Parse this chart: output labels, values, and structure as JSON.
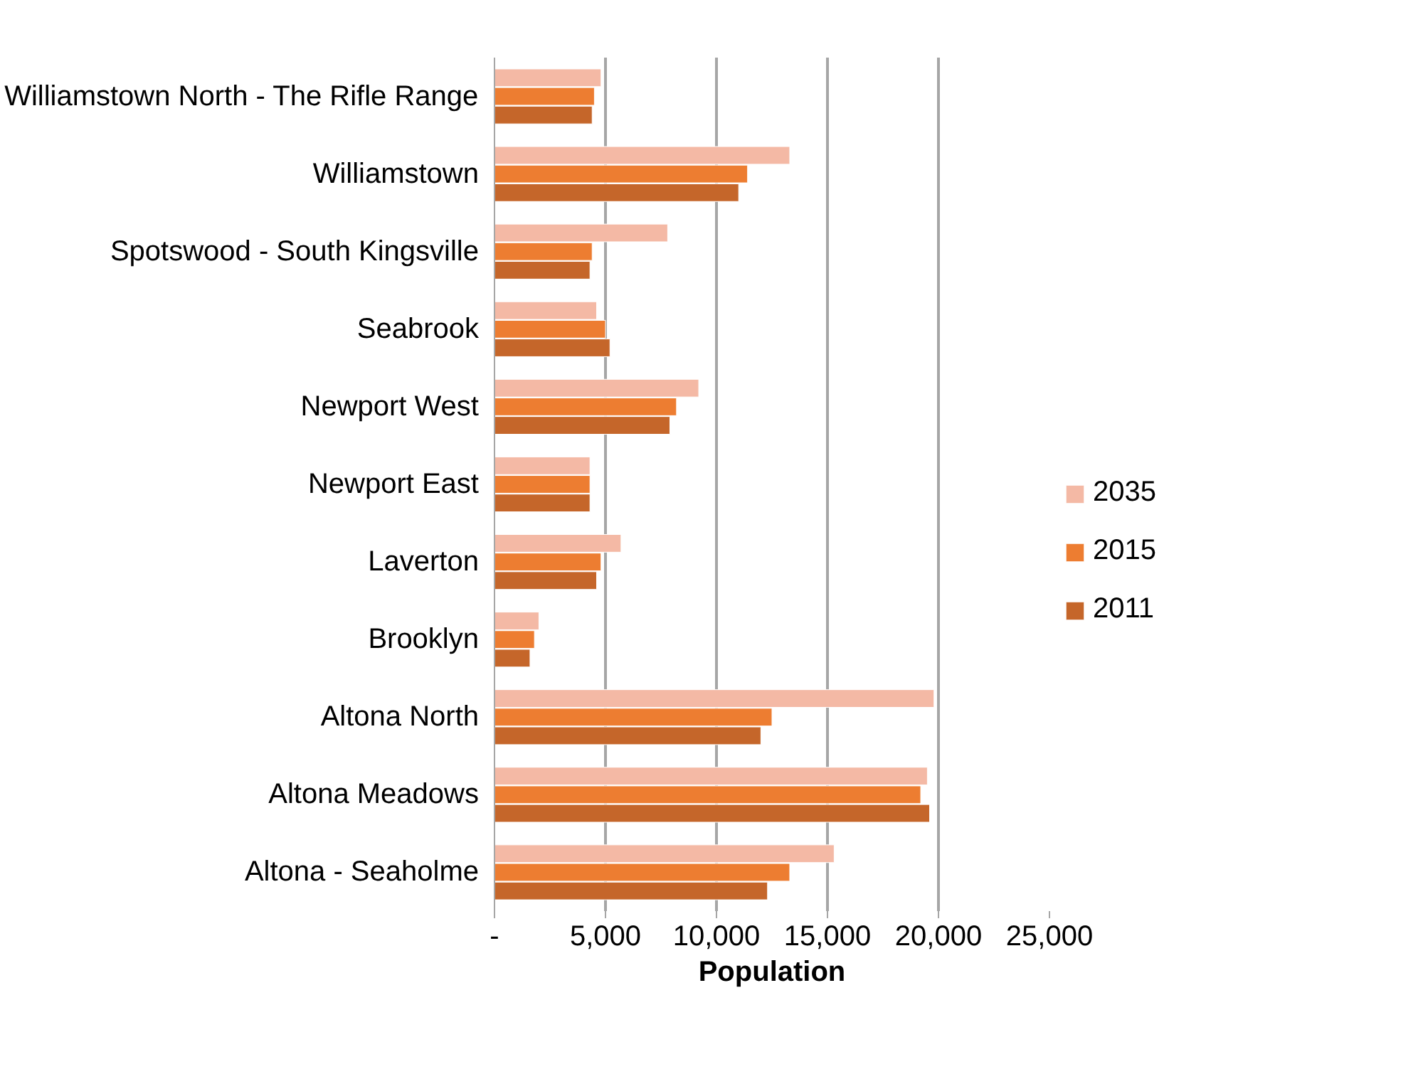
{
  "chart_data": {
    "type": "bar",
    "orientation": "horizontal",
    "xlabel": "Population",
    "categories": [
      "Williamstown North - The Rifle Range",
      "Williamstown",
      "Spotswood - South Kingsville",
      "Seabrook",
      "Newport West",
      "Newport East",
      "Laverton",
      "Brooklyn",
      "Altona North",
      "Altona Meadows",
      "Altona - Seaholme"
    ],
    "series": [
      {
        "name": "2035",
        "color": "#f4b9a5",
        "values": [
          4800,
          13300,
          7800,
          4600,
          9200,
          4300,
          5700,
          2000,
          19800,
          19500,
          15300
        ]
      },
      {
        "name": "2015",
        "color": "#ed7d31",
        "values": [
          4500,
          11400,
          4400,
          5000,
          8200,
          4300,
          4800,
          1800,
          12500,
          19200,
          13300
        ]
      },
      {
        "name": "2011",
        "color": "#c5662a",
        "values": [
          4400,
          11000,
          4300,
          5200,
          7900,
          4300,
          4600,
          1600,
          12000,
          19600,
          12300
        ]
      }
    ],
    "xlim": [
      0,
      25000
    ],
    "xticks": [
      {
        "value": 0,
        "label": "-"
      },
      {
        "value": 5000,
        "label": "5,000"
      },
      {
        "value": 10000,
        "label": "10,000"
      },
      {
        "value": 15000,
        "label": "15,000"
      },
      {
        "value": 20000,
        "label": "20,000"
      },
      {
        "value": 25000,
        "label": "25,000"
      }
    ],
    "grid": "x",
    "legend": "right"
  }
}
